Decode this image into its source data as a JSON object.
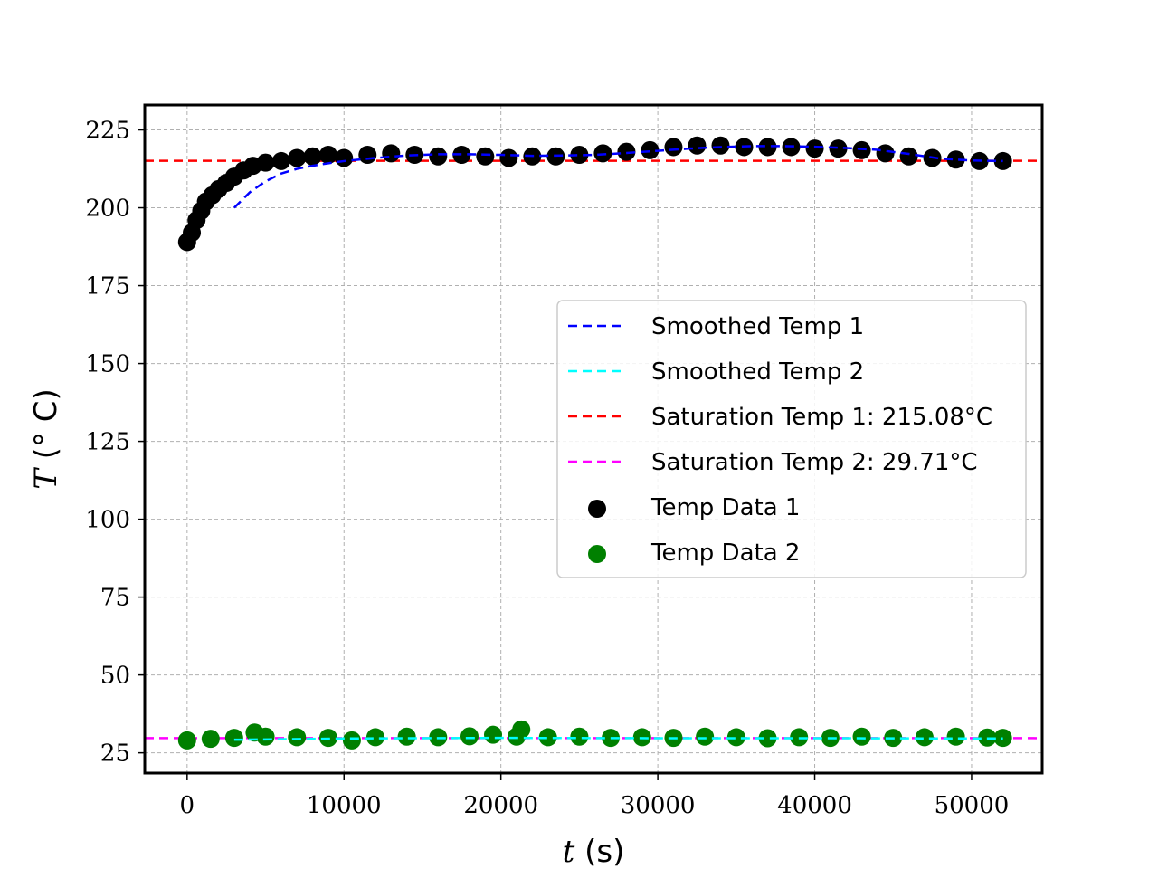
{
  "chart_data": {
    "type": "scatter",
    "title": "",
    "xlabel": {
      "symbol": "t",
      "unit": " (s)"
    },
    "ylabel": {
      "symbol": "T",
      "unit": " (° C)"
    },
    "xlim": [
      -2700,
      54500
    ],
    "ylim": [
      18.5,
      233
    ],
    "xticks": [
      0,
      10000,
      20000,
      30000,
      40000,
      50000
    ],
    "yticks": [
      25,
      50,
      75,
      100,
      125,
      150,
      175,
      200,
      225
    ],
    "grid": true,
    "legend_position": "center-right",
    "saturation_lines": [
      {
        "name": "Saturation Temp 1: 215.08°C",
        "value": 215.08,
        "color": "#ff0000"
      },
      {
        "name": "Saturation Temp 2: 29.71°C",
        "value": 29.71,
        "color": "#ff00ff"
      }
    ],
    "smoothed_series": [
      {
        "name": "Smoothed Temp 1",
        "color": "#0000ff",
        "x": [
          3000,
          4000,
          5000,
          6000,
          7000,
          8000,
          9000,
          10000,
          12000,
          14000,
          16000,
          18000,
          20000,
          22000,
          24000,
          26000,
          28000,
          30000,
          32000,
          34000,
          36000,
          38000,
          40000,
          42000,
          44000,
          46000,
          48000,
          50000,
          52000
        ],
        "y": [
          200,
          205,
          208.5,
          211,
          212.5,
          213.5,
          214.3,
          215,
          216,
          216.8,
          217.2,
          217.2,
          217,
          216.7,
          216.8,
          217,
          217.6,
          218.3,
          219,
          219.5,
          219.8,
          219.8,
          219.6,
          219.2,
          218.6,
          217.3,
          215.8,
          215.2,
          215
        ]
      },
      {
        "name": "Smoothed Temp 2",
        "color": "#00ffff",
        "x": [
          3000,
          10000,
          20000,
          30000,
          40000,
          50000,
          52000
        ],
        "y": [
          29.2,
          29.6,
          29.8,
          29.7,
          29.7,
          29.6,
          29.6
        ]
      }
    ],
    "scatter_series": [
      {
        "name": "Temp Data 1",
        "color": "#000000",
        "x": [
          0,
          300,
          600,
          900,
          1200,
          1600,
          2000,
          2500,
          3000,
          3600,
          4200,
          5000,
          6000,
          7000,
          8000,
          9000,
          10000,
          11500,
          13000,
          14500,
          16000,
          17500,
          19000,
          20500,
          22000,
          23500,
          25000,
          26500,
          28000,
          29500,
          31000,
          32500,
          34000,
          35500,
          37000,
          38500,
          40000,
          41500,
          43000,
          44500,
          46000,
          47500,
          49000,
          50500,
          52000
        ],
        "y": [
          189,
          192,
          196,
          199,
          202,
          204,
          206,
          208,
          210,
          212,
          213.5,
          214.5,
          215,
          216,
          216.5,
          217,
          216,
          217,
          217.5,
          217,
          216.5,
          217,
          216.5,
          216,
          216.5,
          216.5,
          217,
          217.5,
          218,
          218.5,
          219.5,
          220,
          220,
          219.5,
          219.5,
          219.5,
          219,
          219,
          218.5,
          217.5,
          216.5,
          216,
          215.5,
          215,
          215
        ]
      },
      {
        "name": "Temp Data 2",
        "color": "#008000",
        "x": [
          0,
          1500,
          3000,
          4300,
          5000,
          7000,
          9000,
          10500,
          12000,
          14000,
          16000,
          18000,
          19500,
          21000,
          21300,
          23000,
          25000,
          27000,
          29000,
          31000,
          33000,
          35000,
          37000,
          39000,
          41000,
          43000,
          45000,
          47000,
          49000,
          51000,
          52000
        ],
        "y": [
          29,
          29.5,
          29.8,
          31.5,
          30.2,
          30,
          29.8,
          29,
          30,
          30.2,
          30,
          30.3,
          30.8,
          30.2,
          32.5,
          30,
          30.2,
          29.8,
          30,
          29.8,
          30.2,
          30,
          29.7,
          30,
          29.8,
          30.2,
          29.8,
          30,
          30.2,
          29.9,
          29.8
        ]
      }
    ]
  }
}
